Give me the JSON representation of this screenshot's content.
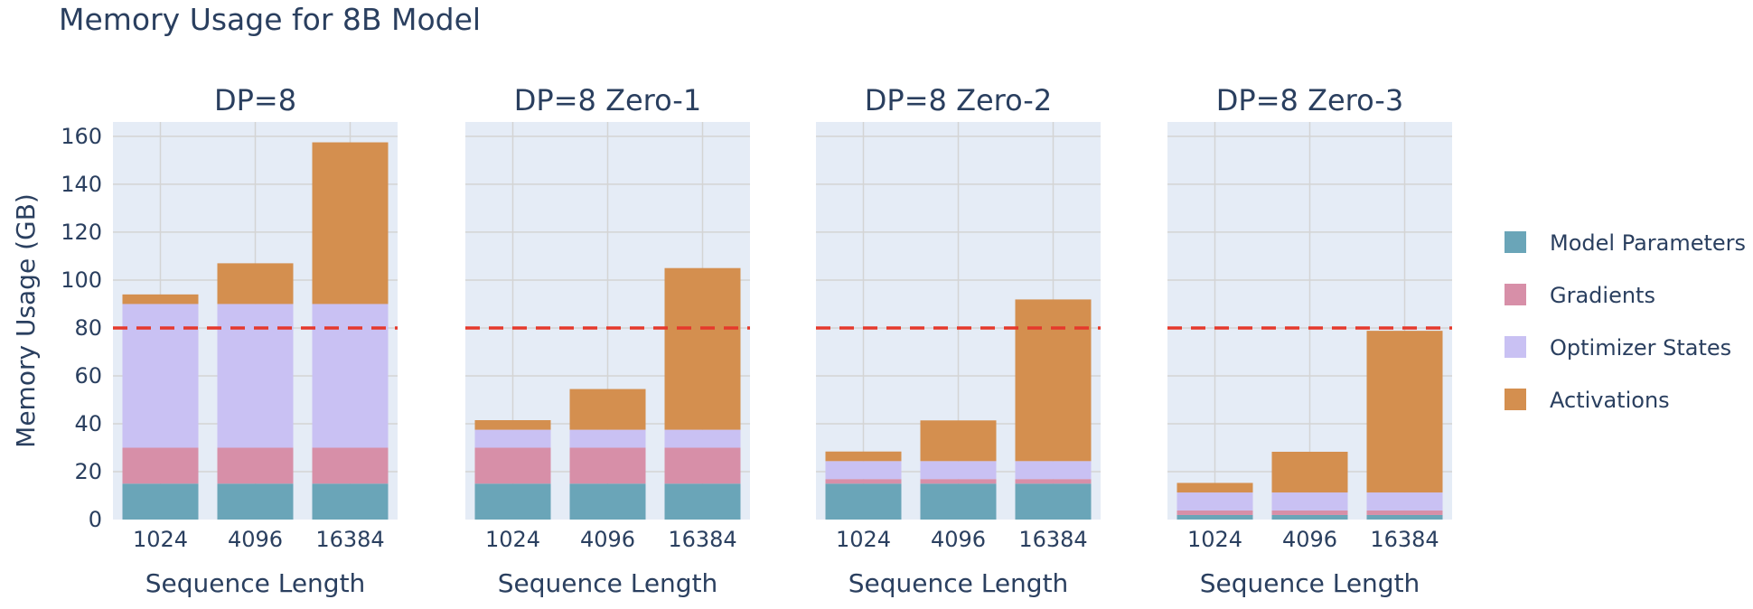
{
  "title": "Memory Usage for 8B Model",
  "colors": {
    "Model Parameters": "#6aa5b8",
    "Gradients": "#d78fa8",
    "Optimizer States": "#c9c1f3",
    "Activations": "#d48f4f",
    "threshold_line": "#e5392c",
    "plot_bg": "#e5ecf6",
    "grid": "#d4d4d4",
    "text": "#2a3f5f"
  },
  "chart_data": {
    "type": "bar",
    "stacked": true,
    "title": "Memory Usage for 8B Model",
    "ylabel": "Memory Usage (GB)",
    "ylim": [
      0,
      166
    ],
    "yticks": [
      0,
      20,
      40,
      60,
      80,
      100,
      120,
      140,
      160
    ],
    "threshold": 80,
    "legend_position": "right",
    "legend": [
      "Model Parameters",
      "Gradients",
      "Optimizer States",
      "Activations"
    ],
    "panels": [
      {
        "title": "DP=8",
        "xlabel": "Sequence Length",
        "categories": [
          "1024",
          "4096",
          "16384"
        ],
        "series": [
          {
            "name": "Model Parameters",
            "values": [
              15,
              15,
              15
            ]
          },
          {
            "name": "Gradients",
            "values": [
              15,
              15,
              15
            ]
          },
          {
            "name": "Optimizer States",
            "values": [
              60,
              60,
              60
            ]
          },
          {
            "name": "Activations",
            "values": [
              4,
              17,
              67.5
            ]
          }
        ]
      },
      {
        "title": "DP=8 Zero-1",
        "xlabel": "Sequence Length",
        "categories": [
          "1024",
          "4096",
          "16384"
        ],
        "series": [
          {
            "name": "Model Parameters",
            "values": [
              15,
              15,
              15
            ]
          },
          {
            "name": "Gradients",
            "values": [
              15,
              15,
              15
            ]
          },
          {
            "name": "Optimizer States",
            "values": [
              7.5,
              7.5,
              7.5
            ]
          },
          {
            "name": "Activations",
            "values": [
              4,
              17,
              67.5
            ]
          }
        ]
      },
      {
        "title": "DP=8 Zero-2",
        "xlabel": "Sequence Length",
        "categories": [
          "1024",
          "4096",
          "16384"
        ],
        "series": [
          {
            "name": "Model Parameters",
            "values": [
              15,
              15,
              15
            ]
          },
          {
            "name": "Gradients",
            "values": [
              1.9,
              1.9,
              1.9
            ]
          },
          {
            "name": "Optimizer States",
            "values": [
              7.5,
              7.5,
              7.5
            ]
          },
          {
            "name": "Activations",
            "values": [
              4,
              17,
              67.5
            ]
          }
        ]
      },
      {
        "title": "DP=8 Zero-3",
        "xlabel": "Sequence Length",
        "categories": [
          "1024",
          "4096",
          "16384"
        ],
        "series": [
          {
            "name": "Model Parameters",
            "values": [
              1.9,
              1.9,
              1.9
            ]
          },
          {
            "name": "Gradients",
            "values": [
              1.9,
              1.9,
              1.9
            ]
          },
          {
            "name": "Optimizer States",
            "values": [
              7.5,
              7.5,
              7.5
            ]
          },
          {
            "name": "Activations",
            "values": [
              4,
              17,
              67.5
            ]
          }
        ]
      }
    ]
  }
}
